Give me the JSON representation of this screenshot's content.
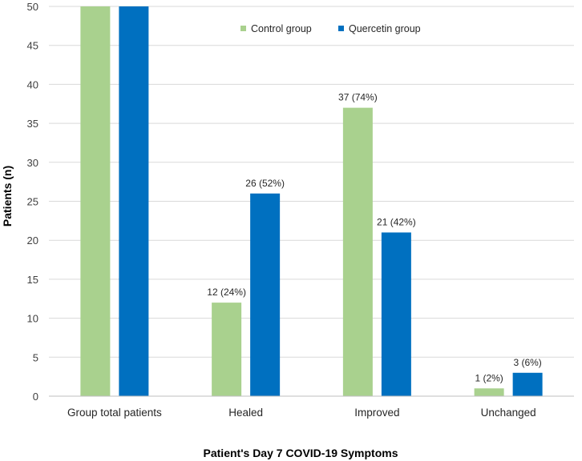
{
  "chart_data": {
    "type": "bar",
    "title": "",
    "xlabel": "Patient's Day 7 COVID-19 Symptoms",
    "ylabel": "Patients (n)",
    "ylim": [
      0,
      50
    ],
    "yticks": [
      0,
      5,
      10,
      15,
      20,
      25,
      30,
      35,
      40,
      45,
      50
    ],
    "grid": true,
    "legend_position": "top-right",
    "categories": [
      "Group total patients",
      "Healed",
      "Improved",
      "Unchanged"
    ],
    "series": [
      {
        "name": "Control group",
        "color": "#a9d18e",
        "values": [
          50,
          12,
          37,
          1
        ],
        "labels": [
          "",
          "12 (24%)",
          "37 (74%)",
          "1 (2%)"
        ]
      },
      {
        "name": "Quercetin group",
        "color": "#0070c0",
        "values": [
          50,
          26,
          21,
          3
        ],
        "labels": [
          "",
          "26 (52%)",
          "21 (42%)",
          "3 (6%)"
        ]
      }
    ]
  }
}
